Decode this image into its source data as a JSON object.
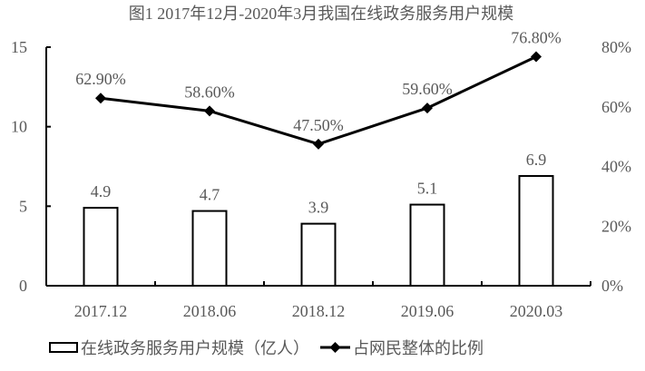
{
  "chart_data": {
    "type": "bar+line",
    "title": "图1 2017年12月-2020年3月我国在线政务服务用户规模",
    "categories": [
      "2017.12",
      "2018.06",
      "2018.12",
      "2019.06",
      "2020.03"
    ],
    "series": [
      {
        "name": "在线政务服务用户规模（亿人）",
        "type": "bar",
        "axis": "left",
        "values": [
          4.9,
          4.7,
          3.9,
          5.1,
          6.9
        ],
        "labels": [
          "4.9",
          "4.7",
          "3.9",
          "5.1",
          "6.9"
        ]
      },
      {
        "name": "占网民整体的比例",
        "type": "line",
        "axis": "right",
        "values": [
          62.9,
          58.6,
          47.5,
          59.6,
          76.8
        ],
        "labels": [
          "62.90%",
          "58.60%",
          "47.50%",
          "59.60%",
          "76.80%"
        ]
      }
    ],
    "left_axis": {
      "ylim": [
        0,
        15
      ],
      "ticks": [
        "0",
        "5",
        "10",
        "15"
      ]
    },
    "right_axis": {
      "ylim": [
        0,
        80
      ],
      "ticks": [
        "0%",
        "20%",
        "40%",
        "60%",
        "80%"
      ]
    },
    "xlabel": "",
    "ylabel": "",
    "grid": false,
    "legend_position": "bottom"
  },
  "colors": {
    "text": "#595959",
    "axis": "#000000",
    "bar_fill": "#ffffff",
    "bar_stroke": "#000000",
    "line": "#000000"
  }
}
